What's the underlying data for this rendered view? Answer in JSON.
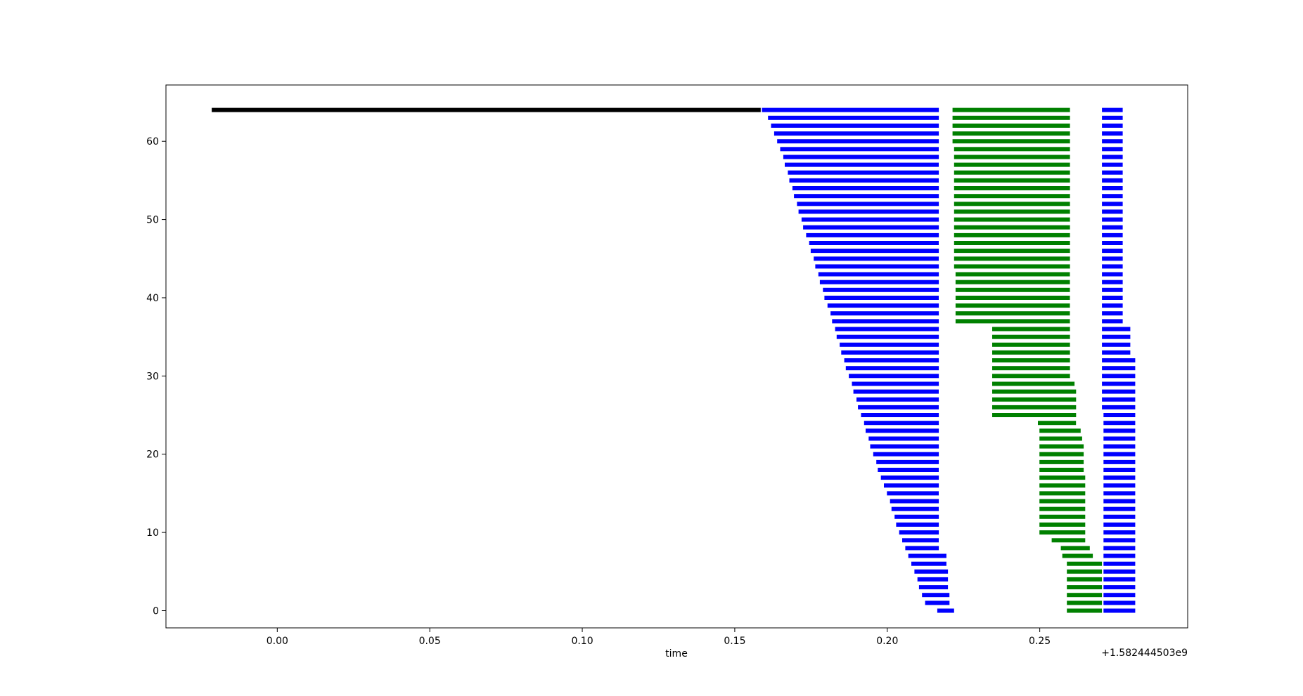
{
  "chart_data": {
    "type": "bar",
    "orientation": "horizontal-ranges",
    "xlabel": "time",
    "ylabel": "",
    "x_offset_label": "+1.582444503e9",
    "xlim": [
      -0.0365,
      0.2985
    ],
    "ylim": [
      -2.2,
      67.2
    ],
    "xticks": [
      {
        "value": 0.0,
        "label": "0.00"
      },
      {
        "value": 0.05,
        "label": "0.05"
      },
      {
        "value": 0.1,
        "label": "0.10"
      },
      {
        "value": 0.15,
        "label": "0.15"
      },
      {
        "value": 0.2,
        "label": "0.20"
      },
      {
        "value": 0.25,
        "label": "0.25"
      }
    ],
    "yticks": [
      {
        "value": 0,
        "label": "0"
      },
      {
        "value": 10,
        "label": "10"
      },
      {
        "value": 20,
        "label": "20"
      },
      {
        "value": 30,
        "label": "30"
      },
      {
        "value": 40,
        "label": "40"
      },
      {
        "value": 50,
        "label": "50"
      },
      {
        "value": 60,
        "label": "60"
      }
    ],
    "colors": {
      "black": "#000000",
      "blue": "#0000ff",
      "green": "#008000"
    },
    "segments": [
      {
        "color": "black",
        "rows": [
          [
            64,
            -0.0215,
            0.1585
          ]
        ]
      },
      {
        "color": "blue",
        "rows": [
          [
            64,
            0.1589,
            0.2169
          ],
          [
            63,
            0.1609,
            0.2169
          ],
          [
            62,
            0.1619,
            0.2169
          ],
          [
            61,
            0.1629,
            0.2169
          ],
          [
            60,
            0.1639,
            0.2169
          ],
          [
            59,
            0.1649,
            0.2169
          ],
          [
            58,
            0.1659,
            0.2169
          ],
          [
            57,
            0.1664,
            0.2169
          ],
          [
            56,
            0.1674,
            0.2169
          ],
          [
            55,
            0.1679,
            0.2169
          ],
          [
            54,
            0.1689,
            0.2169
          ],
          [
            53,
            0.1694,
            0.2169
          ],
          [
            52,
            0.1704,
            0.2169
          ],
          [
            51,
            0.1709,
            0.2169
          ],
          [
            50,
            0.1719,
            0.2169
          ],
          [
            49,
            0.1724,
            0.2169
          ],
          [
            48,
            0.1734,
            0.2169
          ],
          [
            47,
            0.1744,
            0.2169
          ],
          [
            46,
            0.1749,
            0.2169
          ],
          [
            45,
            0.1759,
            0.2169
          ],
          [
            44,
            0.1764,
            0.2169
          ],
          [
            43,
            0.1774,
            0.2169
          ],
          [
            42,
            0.1779,
            0.2169
          ],
          [
            41,
            0.1789,
            0.2169
          ],
          [
            40,
            0.1794,
            0.2169
          ],
          [
            39,
            0.1804,
            0.2169
          ],
          [
            38,
            0.1814,
            0.2169
          ],
          [
            37,
            0.1819,
            0.2169
          ],
          [
            36,
            0.1829,
            0.2169
          ],
          [
            35,
            0.1834,
            0.2169
          ],
          [
            34,
            0.1844,
            0.2169
          ],
          [
            33,
            0.1849,
            0.2169
          ],
          [
            32,
            0.1859,
            0.2169
          ],
          [
            31,
            0.1864,
            0.2169
          ],
          [
            30,
            0.1874,
            0.2169
          ],
          [
            29,
            0.1884,
            0.2169
          ],
          [
            28,
            0.1889,
            0.2169
          ],
          [
            27,
            0.1899,
            0.2169
          ],
          [
            26,
            0.1904,
            0.2169
          ],
          [
            25,
            0.1914,
            0.2169
          ],
          [
            24,
            0.1924,
            0.2169
          ],
          [
            23,
            0.1929,
            0.2169
          ],
          [
            22,
            0.1939,
            0.2169
          ],
          [
            21,
            0.1944,
            0.2169
          ],
          [
            20,
            0.1954,
            0.2169
          ],
          [
            19,
            0.1964,
            0.2169
          ],
          [
            18,
            0.1969,
            0.2169
          ],
          [
            17,
            0.1979,
            0.2169
          ],
          [
            16,
            0.1989,
            0.2169
          ],
          [
            15,
            0.1999,
            0.2169
          ],
          [
            14,
            0.2009,
            0.2169
          ],
          [
            13,
            0.2014,
            0.2169
          ],
          [
            12,
            0.2024,
            0.2169
          ],
          [
            11,
            0.2029,
            0.2169
          ],
          [
            10,
            0.2039,
            0.2169
          ],
          [
            9,
            0.2049,
            0.2169
          ],
          [
            8,
            0.2059,
            0.2169
          ],
          [
            7,
            0.2069,
            0.2194
          ],
          [
            6,
            0.2079,
            0.2194
          ],
          [
            5,
            0.2089,
            0.2199
          ],
          [
            4,
            0.2099,
            0.2199
          ],
          [
            3,
            0.2104,
            0.2199
          ],
          [
            2,
            0.2114,
            0.2204
          ],
          [
            1,
            0.2124,
            0.2204
          ],
          [
            0,
            0.2164,
            0.2219
          ],
          [
            64,
            0.2704,
            0.2772
          ],
          [
            63,
            0.2704,
            0.2772
          ],
          [
            62,
            0.2704,
            0.2772
          ],
          [
            61,
            0.2704,
            0.2772
          ],
          [
            60,
            0.2704,
            0.2772
          ],
          [
            59,
            0.2704,
            0.2772
          ],
          [
            58,
            0.2704,
            0.2772
          ],
          [
            57,
            0.2704,
            0.2772
          ],
          [
            56,
            0.2704,
            0.2772
          ],
          [
            55,
            0.2704,
            0.2772
          ],
          [
            54,
            0.2704,
            0.2772
          ],
          [
            53,
            0.2704,
            0.2772
          ],
          [
            52,
            0.2704,
            0.2772
          ],
          [
            51,
            0.2704,
            0.2772
          ],
          [
            50,
            0.2704,
            0.2772
          ],
          [
            49,
            0.2704,
            0.2772
          ],
          [
            48,
            0.2704,
            0.2772
          ],
          [
            47,
            0.2704,
            0.2772
          ],
          [
            46,
            0.2704,
            0.2772
          ],
          [
            45,
            0.2704,
            0.2772
          ],
          [
            44,
            0.2704,
            0.2772
          ],
          [
            43,
            0.2704,
            0.2772
          ],
          [
            42,
            0.2704,
            0.2772
          ],
          [
            41,
            0.2704,
            0.2772
          ],
          [
            40,
            0.2704,
            0.2772
          ],
          [
            39,
            0.2704,
            0.2772
          ],
          [
            38,
            0.2704,
            0.2772
          ],
          [
            37,
            0.2704,
            0.2772
          ],
          [
            36,
            0.2704,
            0.2797
          ],
          [
            35,
            0.2704,
            0.2797
          ],
          [
            34,
            0.2704,
            0.2797
          ],
          [
            33,
            0.2704,
            0.2797
          ],
          [
            32,
            0.2704,
            0.2813
          ],
          [
            31,
            0.2704,
            0.2813
          ],
          [
            30,
            0.2704,
            0.2813
          ],
          [
            29,
            0.2704,
            0.2813
          ],
          [
            28,
            0.2704,
            0.2813
          ],
          [
            27,
            0.2704,
            0.2813
          ],
          [
            26,
            0.2704,
            0.2813
          ],
          [
            25,
            0.2709,
            0.2813
          ],
          [
            24,
            0.2709,
            0.2813
          ],
          [
            23,
            0.2709,
            0.2813
          ],
          [
            22,
            0.2709,
            0.2813
          ],
          [
            21,
            0.2709,
            0.2813
          ],
          [
            20,
            0.2709,
            0.2813
          ],
          [
            19,
            0.2709,
            0.2813
          ],
          [
            18,
            0.2709,
            0.2813
          ],
          [
            17,
            0.2709,
            0.2813
          ],
          [
            16,
            0.2709,
            0.2813
          ],
          [
            15,
            0.2709,
            0.2813
          ],
          [
            14,
            0.2709,
            0.2813
          ],
          [
            13,
            0.2709,
            0.2813
          ],
          [
            12,
            0.2709,
            0.2813
          ],
          [
            11,
            0.2709,
            0.2813
          ],
          [
            10,
            0.2709,
            0.2813
          ],
          [
            9,
            0.2709,
            0.2813
          ],
          [
            8,
            0.2709,
            0.2813
          ],
          [
            7,
            0.2709,
            0.2813
          ],
          [
            6,
            0.2709,
            0.2813
          ],
          [
            5,
            0.2709,
            0.2813
          ],
          [
            4,
            0.2709,
            0.2813
          ],
          [
            3,
            0.2709,
            0.2813
          ],
          [
            2,
            0.2709,
            0.2813
          ],
          [
            1,
            0.2709,
            0.2813
          ],
          [
            0,
            0.2709,
            0.2813
          ]
        ]
      },
      {
        "color": "green",
        "rows": [
          [
            64,
            0.2214,
            0.2599
          ],
          [
            63,
            0.2214,
            0.2599
          ],
          [
            62,
            0.2214,
            0.2599
          ],
          [
            61,
            0.2214,
            0.2599
          ],
          [
            60,
            0.2214,
            0.2599
          ],
          [
            59,
            0.2219,
            0.2599
          ],
          [
            58,
            0.2219,
            0.2599
          ],
          [
            57,
            0.2219,
            0.2599
          ],
          [
            56,
            0.2219,
            0.2599
          ],
          [
            55,
            0.2219,
            0.2599
          ],
          [
            54,
            0.2219,
            0.2599
          ],
          [
            53,
            0.2219,
            0.2599
          ],
          [
            52,
            0.2219,
            0.2599
          ],
          [
            51,
            0.2219,
            0.2599
          ],
          [
            50,
            0.2219,
            0.2599
          ],
          [
            49,
            0.2219,
            0.2599
          ],
          [
            48,
            0.2219,
            0.2599
          ],
          [
            47,
            0.2219,
            0.2599
          ],
          [
            46,
            0.2219,
            0.2599
          ],
          [
            45,
            0.2219,
            0.2599
          ],
          [
            44,
            0.2219,
            0.2599
          ],
          [
            43,
            0.2224,
            0.2599
          ],
          [
            42,
            0.2224,
            0.2599
          ],
          [
            41,
            0.2224,
            0.2599
          ],
          [
            40,
            0.2224,
            0.2599
          ],
          [
            39,
            0.2224,
            0.2599
          ],
          [
            38,
            0.2224,
            0.2599
          ],
          [
            37,
            0.2224,
            0.2599
          ],
          [
            36,
            0.2344,
            0.2599
          ],
          [
            35,
            0.2344,
            0.2599
          ],
          [
            34,
            0.2344,
            0.2599
          ],
          [
            33,
            0.2344,
            0.2599
          ],
          [
            32,
            0.2344,
            0.2599
          ],
          [
            31,
            0.2344,
            0.2599
          ],
          [
            30,
            0.2344,
            0.2599
          ],
          [
            29,
            0.2344,
            0.2614
          ],
          [
            28,
            0.2344,
            0.2619
          ],
          [
            27,
            0.2344,
            0.2619
          ],
          [
            26,
            0.2344,
            0.2619
          ],
          [
            25,
            0.2344,
            0.2619
          ],
          [
            24,
            0.2494,
            0.2619
          ],
          [
            23,
            0.2499,
            0.2634
          ],
          [
            22,
            0.2499,
            0.2639
          ],
          [
            21,
            0.2499,
            0.2644
          ],
          [
            20,
            0.2499,
            0.2644
          ],
          [
            19,
            0.2499,
            0.2644
          ],
          [
            18,
            0.2499,
            0.2644
          ],
          [
            17,
            0.2499,
            0.2649
          ],
          [
            16,
            0.2499,
            0.2649
          ],
          [
            15,
            0.2499,
            0.2649
          ],
          [
            14,
            0.2499,
            0.2649
          ],
          [
            13,
            0.2499,
            0.2649
          ],
          [
            12,
            0.2499,
            0.2649
          ],
          [
            11,
            0.2499,
            0.2649
          ],
          [
            10,
            0.2499,
            0.2649
          ],
          [
            9,
            0.2539,
            0.2649
          ],
          [
            8,
            0.2569,
            0.2664
          ],
          [
            7,
            0.2574,
            0.2674
          ],
          [
            6,
            0.2589,
            0.2704
          ],
          [
            5,
            0.2589,
            0.2704
          ],
          [
            4,
            0.2589,
            0.2704
          ],
          [
            3,
            0.2589,
            0.2704
          ],
          [
            2,
            0.2589,
            0.2704
          ],
          [
            1,
            0.2589,
            0.2704
          ],
          [
            0,
            0.2589,
            0.2704
          ]
        ]
      }
    ]
  }
}
